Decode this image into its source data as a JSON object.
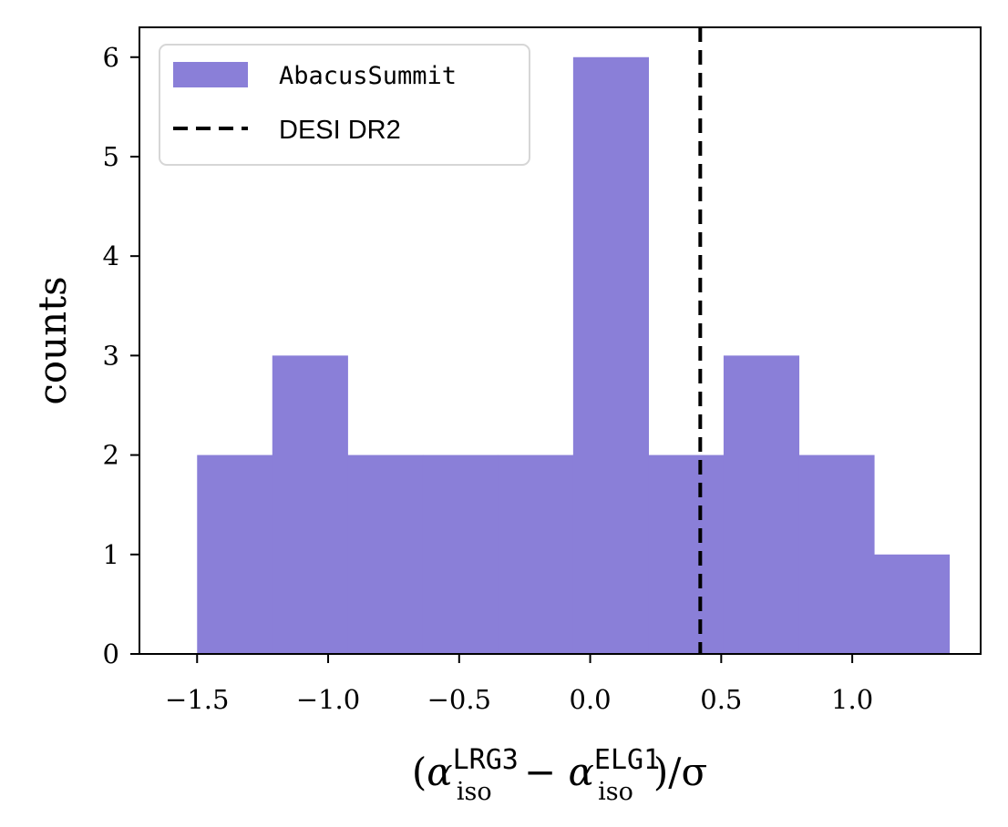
{
  "chart_data": {
    "type": "bar",
    "subtype": "histogram",
    "title": "",
    "xlabel": {
      "open": "(",
      "alpha1": "α",
      "sup1": "LRG3",
      "sub1": "iso",
      "minus": "−",
      "alpha2": "α",
      "sup2": "ELG1",
      "sub2": "iso",
      "close": ")/σ"
    },
    "ylabel": "counts",
    "xlim": [
      -1.72,
      1.49
    ],
    "ylim": [
      0,
      6.3
    ],
    "bin_edges": [
      -1.5,
      -1.213,
      -0.926,
      -0.639,
      -0.352,
      -0.065,
      0.222,
      0.509,
      0.796,
      1.083,
      1.37
    ],
    "counts": [
      2,
      3,
      2,
      2,
      2,
      6,
      2,
      3,
      2,
      1
    ],
    "series": [
      {
        "name": "AbacusSummit",
        "kind": "histogram",
        "color": "#8a7fd8"
      }
    ],
    "reference_lines": [
      {
        "name": "DESI DR2",
        "x": 0.42,
        "style": "dashed",
        "color": "#000000"
      }
    ],
    "x_ticks": [
      {
        "value": -1.5,
        "label": "−1.5"
      },
      {
        "value": -1.0,
        "label": "−1.0"
      },
      {
        "value": -0.5,
        "label": "−0.5"
      },
      {
        "value": 0.0,
        "label": "0.0"
      },
      {
        "value": 0.5,
        "label": "0.5"
      },
      {
        "value": 1.0,
        "label": "1.0"
      }
    ],
    "y_ticks": [
      {
        "value": 0,
        "label": "0"
      },
      {
        "value": 1,
        "label": "1"
      },
      {
        "value": 2,
        "label": "2"
      },
      {
        "value": 3,
        "label": "3"
      },
      {
        "value": 4,
        "label": "4"
      },
      {
        "value": 5,
        "label": "5"
      },
      {
        "value": 6,
        "label": "6"
      }
    ],
    "legend": {
      "placement": "upper-left",
      "entries": [
        {
          "label": "AbacusSummit",
          "marker": "patch",
          "color": "#8a7fd8"
        },
        {
          "label": "DESI DR2",
          "marker": "dashed-line",
          "color": "#000000"
        }
      ]
    },
    "grid": false
  }
}
